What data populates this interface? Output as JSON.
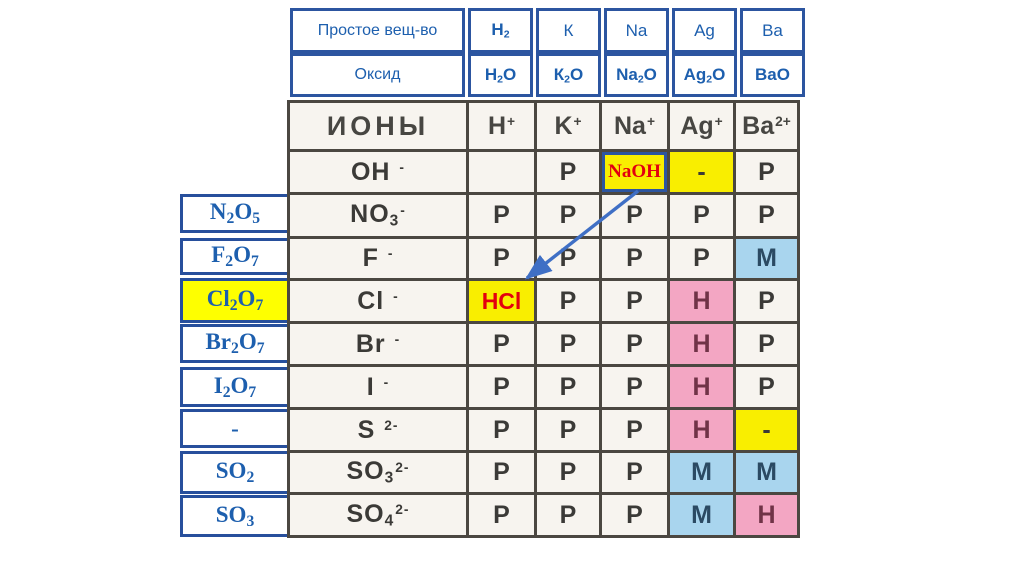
{
  "top_table": {
    "row1_label": "Простое вещ-во",
    "row1_cells": [
      {
        "id": "h2",
        "tokens": [
          [
            "H",
            "n"
          ],
          [
            "2",
            "s"
          ]
        ],
        "bold": true
      },
      {
        "id": "k",
        "tokens": [
          [
            "К",
            "n"
          ]
        ],
        "bold": false
      },
      {
        "id": "na",
        "tokens": [
          [
            "Na",
            "n"
          ]
        ],
        "bold": false
      },
      {
        "id": "ag",
        "tokens": [
          [
            "Ag",
            "n"
          ]
        ],
        "bold": false
      },
      {
        "id": "ba",
        "tokens": [
          [
            "Ba",
            "n"
          ]
        ],
        "bold": false
      }
    ],
    "row2_label": "Оксид",
    "row2_cells": [
      {
        "id": "h2o",
        "tokens": [
          [
            "H",
            "n"
          ],
          [
            "2",
            "s"
          ],
          [
            "O",
            "n"
          ]
        ],
        "bold": true
      },
      {
        "id": "k2o",
        "tokens": [
          [
            "К",
            "n"
          ],
          [
            "2",
            "s"
          ],
          [
            "O",
            "n"
          ]
        ],
        "bold": true
      },
      {
        "id": "na2o",
        "tokens": [
          [
            "Na",
            "n"
          ],
          [
            "2",
            "s"
          ],
          [
            "O",
            "n"
          ]
        ],
        "bold": true
      },
      {
        "id": "ag2o",
        "tokens": [
          [
            "Ag",
            "n"
          ],
          [
            "2",
            "s"
          ],
          [
            "O",
            "n"
          ]
        ],
        "bold": true
      },
      {
        "id": "bao",
        "tokens": [
          [
            "BaO",
            "n"
          ]
        ],
        "bold": true
      }
    ]
  },
  "sidebar": {
    "items": [
      {
        "id": "n2o5",
        "tokens": [
          [
            "N",
            "n"
          ],
          [
            "2",
            "s"
          ],
          [
            "O",
            "n"
          ],
          [
            "5",
            "s"
          ]
        ],
        "highlight": false
      },
      {
        "id": "f2o7",
        "tokens": [
          [
            "F",
            "n"
          ],
          [
            "2",
            "s"
          ],
          [
            "O",
            "n"
          ],
          [
            "7",
            "s"
          ]
        ],
        "highlight": false
      },
      {
        "id": "cl2o7",
        "tokens": [
          [
            "Cl",
            "n"
          ],
          [
            "2",
            "s"
          ],
          [
            "O",
            "n"
          ],
          [
            "7",
            "s"
          ]
        ],
        "highlight": true
      },
      {
        "id": "br2o7",
        "tokens": [
          [
            "Br",
            "n"
          ],
          [
            "2",
            "s"
          ],
          [
            "O",
            "n"
          ],
          [
            "7",
            "s"
          ]
        ],
        "highlight": false
      },
      {
        "id": "i2o7",
        "tokens": [
          [
            "I",
            "n"
          ],
          [
            "2",
            "s"
          ],
          [
            "O",
            "n"
          ],
          [
            "7",
            "s"
          ]
        ],
        "highlight": false
      },
      {
        "id": "dash",
        "tokens": [
          [
            "-",
            "n"
          ]
        ],
        "highlight": false
      },
      {
        "id": "so2",
        "tokens": [
          [
            "SO",
            "n"
          ],
          [
            "2",
            "s"
          ]
        ],
        "highlight": false
      },
      {
        "id": "so3",
        "tokens": [
          [
            "SO",
            "n"
          ],
          [
            "3",
            "s"
          ]
        ],
        "highlight": false
      }
    ]
  },
  "main_table": {
    "header_label": "ИОНЫ",
    "columns": [
      {
        "id": "h",
        "tokens": [
          [
            "H",
            "n"
          ],
          [
            "+",
            "u"
          ]
        ]
      },
      {
        "id": "k",
        "tokens": [
          [
            "K",
            "n"
          ],
          [
            "+",
            "u"
          ]
        ]
      },
      {
        "id": "na",
        "tokens": [
          [
            "Na",
            "n"
          ],
          [
            "+",
            "u"
          ]
        ]
      },
      {
        "id": "ag",
        "tokens": [
          [
            "Ag",
            "n"
          ],
          [
            "+",
            "u"
          ]
        ]
      },
      {
        "id": "ba",
        "tokens": [
          [
            "Ba",
            "n"
          ],
          [
            "2+",
            "u"
          ]
        ]
      }
    ],
    "rows": [
      {
        "id": "oh",
        "tokens": [
          [
            "OH ",
            "n"
          ],
          [
            "-",
            "u"
          ]
        ],
        "cells": [
          {
            "t": "",
            "c": "plain"
          },
          {
            "t": "P",
            "c": "plain"
          },
          {
            "t": "NaOH",
            "c": "naoh"
          },
          {
            "t": "-",
            "c": "yellow"
          },
          {
            "t": "P",
            "c": "plain"
          }
        ]
      },
      {
        "id": "no3",
        "tokens": [
          [
            "NO",
            "n"
          ],
          [
            "3",
            "s"
          ],
          [
            "-",
            "u"
          ]
        ],
        "cells": [
          {
            "t": "P",
            "c": "plain"
          },
          {
            "t": "P",
            "c": "plain"
          },
          {
            "t": "P",
            "c": "plain"
          },
          {
            "t": "P",
            "c": "plain"
          },
          {
            "t": "P",
            "c": "plain"
          }
        ]
      },
      {
        "id": "f",
        "tokens": [
          [
            "F ",
            "n"
          ],
          [
            "-",
            "u"
          ]
        ],
        "cells": [
          {
            "t": "P",
            "c": "plain"
          },
          {
            "t": "P",
            "c": "plain"
          },
          {
            "t": "P",
            "c": "plain"
          },
          {
            "t": "P",
            "c": "plain"
          },
          {
            "t": "M",
            "c": "blue"
          }
        ]
      },
      {
        "id": "cl",
        "tokens": [
          [
            "Cl ",
            "n"
          ],
          [
            "-",
            "u"
          ]
        ],
        "cells": [
          {
            "t": "HCl",
            "c": "hcl"
          },
          {
            "t": "P",
            "c": "plain"
          },
          {
            "t": "P",
            "c": "plain"
          },
          {
            "t": "H",
            "c": "pink"
          },
          {
            "t": "P",
            "c": "plain"
          }
        ]
      },
      {
        "id": "br",
        "tokens": [
          [
            "Br ",
            "n"
          ],
          [
            "-",
            "u"
          ]
        ],
        "cells": [
          {
            "t": "P",
            "c": "plain"
          },
          {
            "t": "P",
            "c": "plain"
          },
          {
            "t": "P",
            "c": "plain"
          },
          {
            "t": "H",
            "c": "pink"
          },
          {
            "t": "P",
            "c": "plain"
          }
        ]
      },
      {
        "id": "i",
        "tokens": [
          [
            "I ",
            "n"
          ],
          [
            "-",
            "u"
          ]
        ],
        "cells": [
          {
            "t": "P",
            "c": "plain"
          },
          {
            "t": "P",
            "c": "plain"
          },
          {
            "t": "P",
            "c": "plain"
          },
          {
            "t": "H",
            "c": "pink"
          },
          {
            "t": "P",
            "c": "plain"
          }
        ]
      },
      {
        "id": "s",
        "tokens": [
          [
            "S ",
            "n"
          ],
          [
            "2-",
            "u"
          ]
        ],
        "cells": [
          {
            "t": "P",
            "c": "plain"
          },
          {
            "t": "P",
            "c": "plain"
          },
          {
            "t": "P",
            "c": "plain"
          },
          {
            "t": "H",
            "c": "pink"
          },
          {
            "t": "-",
            "c": "yellow"
          }
        ]
      },
      {
        "id": "so3",
        "tokens": [
          [
            "SO",
            "n"
          ],
          [
            "3",
            "s"
          ],
          [
            "2-",
            "u"
          ]
        ],
        "cells": [
          {
            "t": "P",
            "c": "plain"
          },
          {
            "t": "P",
            "c": "plain"
          },
          {
            "t": "P",
            "c": "plain"
          },
          {
            "t": "M",
            "c": "blue"
          },
          {
            "t": "M",
            "c": "blue"
          }
        ]
      },
      {
        "id": "so4",
        "tokens": [
          [
            "SO",
            "n"
          ],
          [
            "4",
            "s"
          ],
          [
            "2-",
            "u"
          ]
        ],
        "cells": [
          {
            "t": "P",
            "c": "plain"
          },
          {
            "t": "P",
            "c": "plain"
          },
          {
            "t": "P",
            "c": "plain"
          },
          {
            "t": "M",
            "c": "blue"
          },
          {
            "t": "H",
            "c": "pink"
          }
        ]
      }
    ]
  },
  "colors": {
    "accent_blue_text": "#1d5fae",
    "blue_border": "#2c55a0",
    "highlight_yellow": "#f9ee00",
    "insoluble_pink": "#f3a6c3",
    "slightly_soluble_blue": "#a9d5ee",
    "annotation_red": "#e3000e",
    "arrow_blue": "#3f6fc5",
    "grid_line": "#4b4741"
  }
}
